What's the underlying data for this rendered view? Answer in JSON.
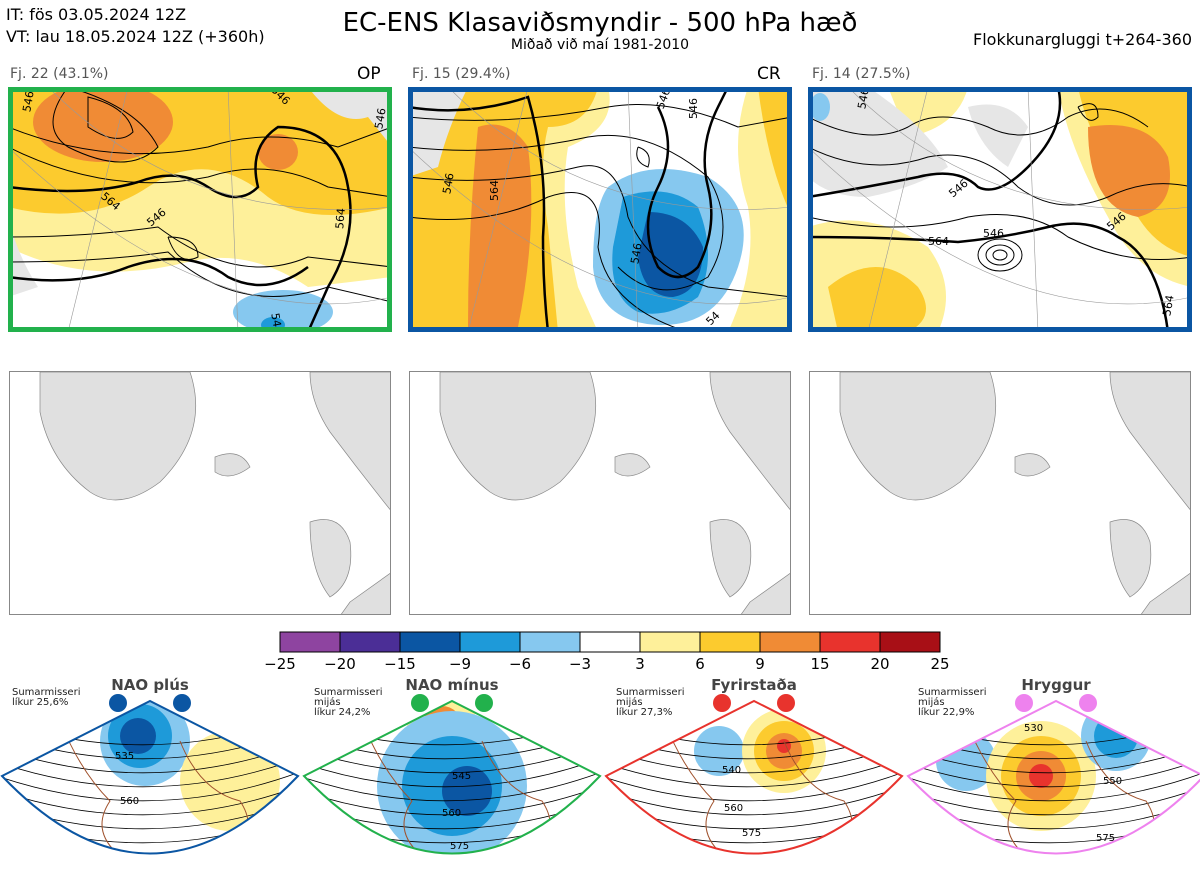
{
  "header": {
    "init_line": "IT: fös 03.05.2024 12Z",
    "valid_line": "VT: lau 18.05.2024 12Z  (+360h)",
    "title": "EC-ENS Klasaviðsmyndir - 500 hPa hæð",
    "subtitle": "Miðað við maí 1981-2010",
    "window": "Flokkunargluggi t+264-360"
  },
  "panels": [
    {
      "label": "Fj. 22 (43.1%)",
      "tag": "OP",
      "border_color": "#22b14c"
    },
    {
      "label": "Fj. 15 (29.4%)",
      "tag": "CR",
      "border_color": "#0b56a3"
    },
    {
      "label": "Fj. 14 (27.5%)",
      "tag": "",
      "border_color": "#0b56a3"
    }
  ],
  "contour_labels": {
    "p1": [
      "546",
      "546",
      "564",
      "546",
      "546",
      "564",
      "546"
    ],
    "p2": [
      "546",
      "564",
      "546",
      "546",
      "546",
      "54"
    ],
    "p3": [
      "546",
      "546",
      "564",
      "546",
      "546",
      "564"
    ]
  },
  "chart_data": {
    "type": "heatmap",
    "title": "EC-ENS Klasaviðsmyndir - 500 hPa hæð",
    "colorbar": {
      "ticks": [
        -25,
        -20,
        -15,
        -9,
        -6,
        -3,
        3,
        6,
        9,
        15,
        20,
        25
      ],
      "colors": [
        "#8e44a0",
        "#4b2e96",
        "#0b56a3",
        "#1e9ad9",
        "#86c8ef",
        "#ffffff",
        "#fef09a",
        "#fccb2e",
        "#f08b35",
        "#e8332d",
        "#a80f16"
      ]
    },
    "clusters": [
      {
        "label": "Fj. 22 (43.1%)",
        "members": 22,
        "percent": 43.1,
        "tag": "OP"
      },
      {
        "label": "Fj. 15 (29.4%)",
        "members": 15,
        "percent": 29.4,
        "tag": "CR"
      },
      {
        "label": "Fj. 14 (27.5%)",
        "members": 14,
        "percent": 27.5,
        "tag": ""
      }
    ],
    "regimes": [
      {
        "name": "NAO plús",
        "season": "Sumarmisseri",
        "period": "",
        "prob": "líkur 25,6%",
        "contours": [
          "535",
          "560"
        ],
        "color": "#0b56a3"
      },
      {
        "name": "NAO mínus",
        "season": "Sumarmisseri",
        "period": "mijás",
        "prob": "líkur 24,2%",
        "contours": [
          "545",
          "560",
          "575"
        ],
        "color": "#22b14c"
      },
      {
        "name": "Fyrirstaða",
        "season": "Sumarmisseri",
        "period": "mijás",
        "prob": "líkur 27,3%",
        "contours": [
          "540",
          "560",
          "575"
        ],
        "color": "#e8332d"
      },
      {
        "name": "Hryggur",
        "season": "Sumarmisseri",
        "period": "mijás",
        "prob": "líkur 22,9%",
        "contours": [
          "530",
          "550",
          "575"
        ],
        "color": "#ee82ee"
      }
    ]
  }
}
